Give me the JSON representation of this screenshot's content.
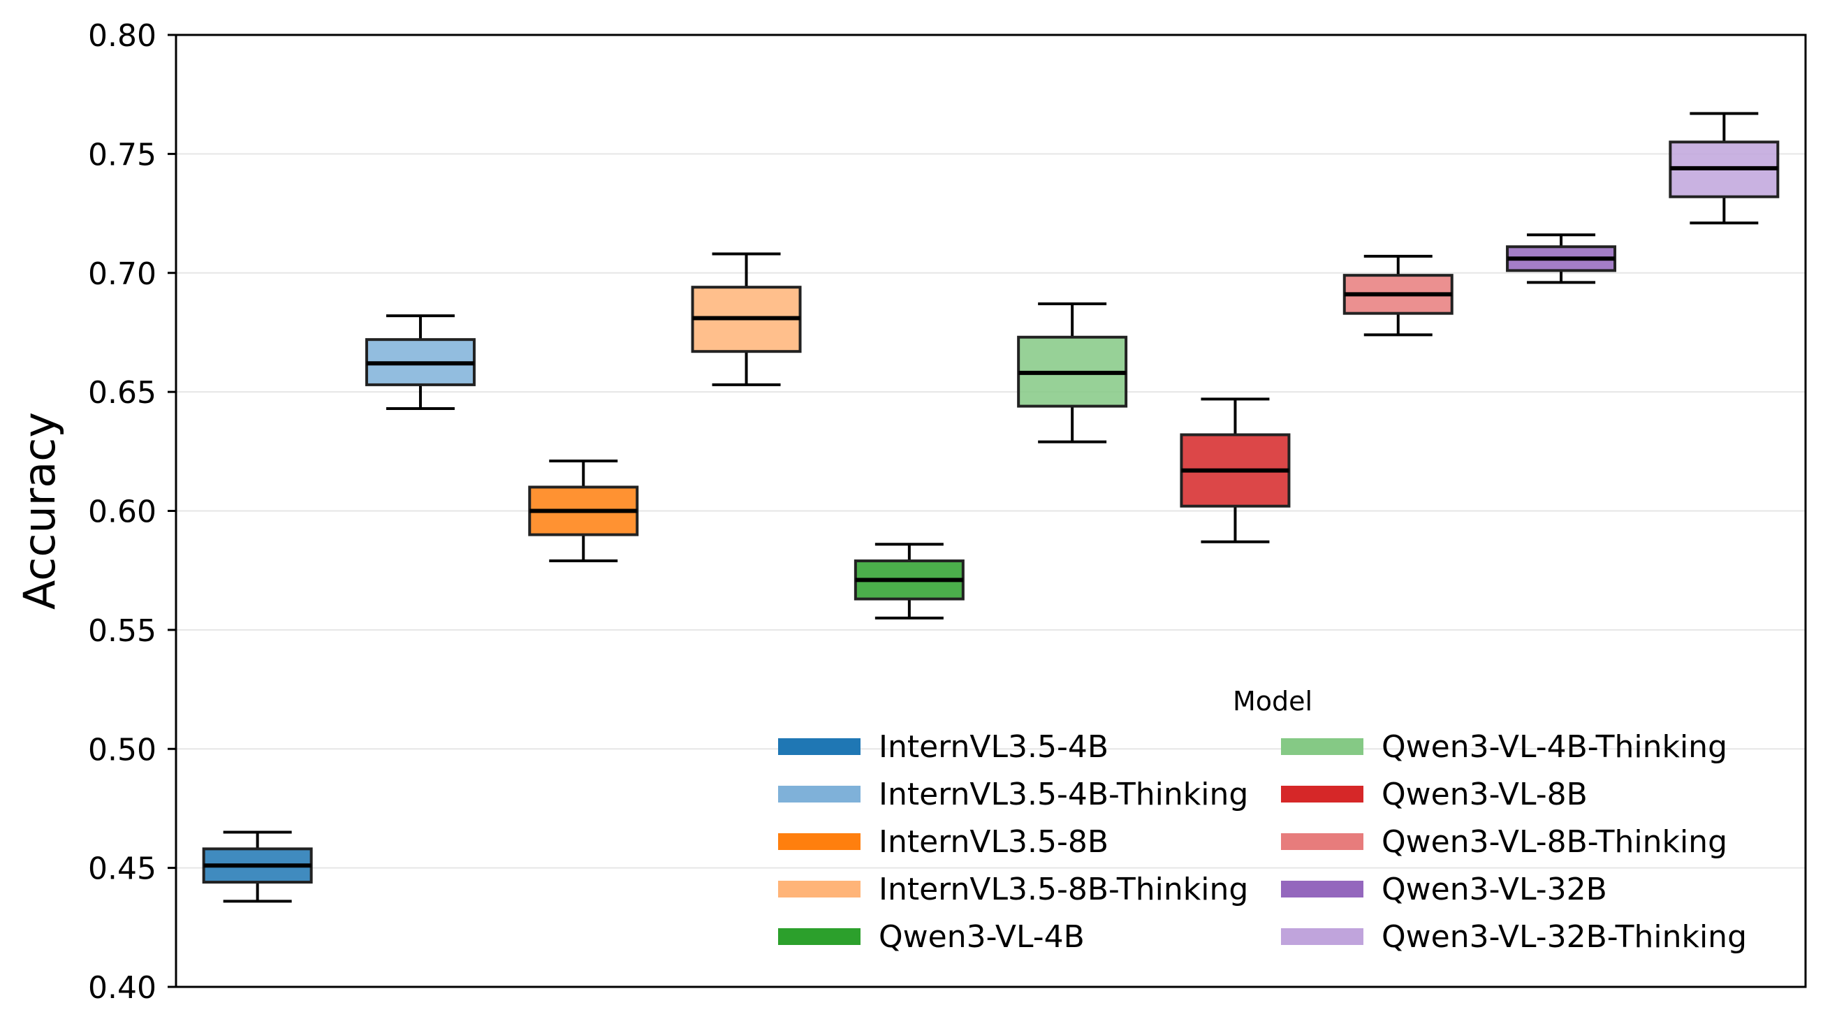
{
  "chart_data": {
    "type": "box",
    "ylabel": "Accuracy",
    "xlabel": "",
    "ylim": [
      0.4,
      0.8
    ],
    "yticks": [
      "0.40",
      "0.45",
      "0.50",
      "0.55",
      "0.60",
      "0.65",
      "0.70",
      "0.75",
      "0.80"
    ],
    "grid": "horizontal",
    "legend": {
      "title": "Model",
      "placement": "lower-right",
      "columns": 2
    },
    "series": [
      {
        "name": "InternVL3.5-4B",
        "color": "#1f77b4",
        "min": 0.436,
        "q1": 0.444,
        "median": 0.451,
        "q3": 0.458,
        "max": 0.465
      },
      {
        "name": "InternVL3.5-4B-Thinking",
        "color": "#7fb1d9",
        "min": 0.643,
        "q1": 0.653,
        "median": 0.662,
        "q3": 0.672,
        "max": 0.682
      },
      {
        "name": "InternVL3.5-8B",
        "color": "#ff7f0e",
        "min": 0.579,
        "q1": 0.59,
        "median": 0.6,
        "q3": 0.61,
        "max": 0.621
      },
      {
        "name": "InternVL3.5-8B-Thinking",
        "color": "#ffb478",
        "min": 0.653,
        "q1": 0.667,
        "median": 0.681,
        "q3": 0.694,
        "max": 0.708
      },
      {
        "name": "Qwen3-VL-4B",
        "color": "#2ca02c",
        "min": 0.555,
        "q1": 0.563,
        "median": 0.571,
        "q3": 0.579,
        "max": 0.586
      },
      {
        "name": "Qwen3-VL-4B-Thinking",
        "color": "#85c985",
        "min": 0.629,
        "q1": 0.644,
        "median": 0.658,
        "q3": 0.673,
        "max": 0.687
      },
      {
        "name": "Qwen3-VL-8B",
        "color": "#d62728",
        "min": 0.587,
        "q1": 0.602,
        "median": 0.617,
        "q3": 0.632,
        "max": 0.647
      },
      {
        "name": "Qwen3-VL-8B-Thinking",
        "color": "#e77c7c",
        "min": 0.674,
        "q1": 0.683,
        "median": 0.691,
        "q3": 0.699,
        "max": 0.707
      },
      {
        "name": "Qwen3-VL-32B",
        "color": "#9467bd",
        "min": 0.696,
        "q1": 0.701,
        "median": 0.706,
        "q3": 0.711,
        "max": 0.716
      },
      {
        "name": "Qwen3-VL-32B-Thinking",
        "color": "#c0a4dc",
        "min": 0.721,
        "q1": 0.732,
        "median": 0.744,
        "q3": 0.755,
        "max": 0.767
      }
    ]
  }
}
